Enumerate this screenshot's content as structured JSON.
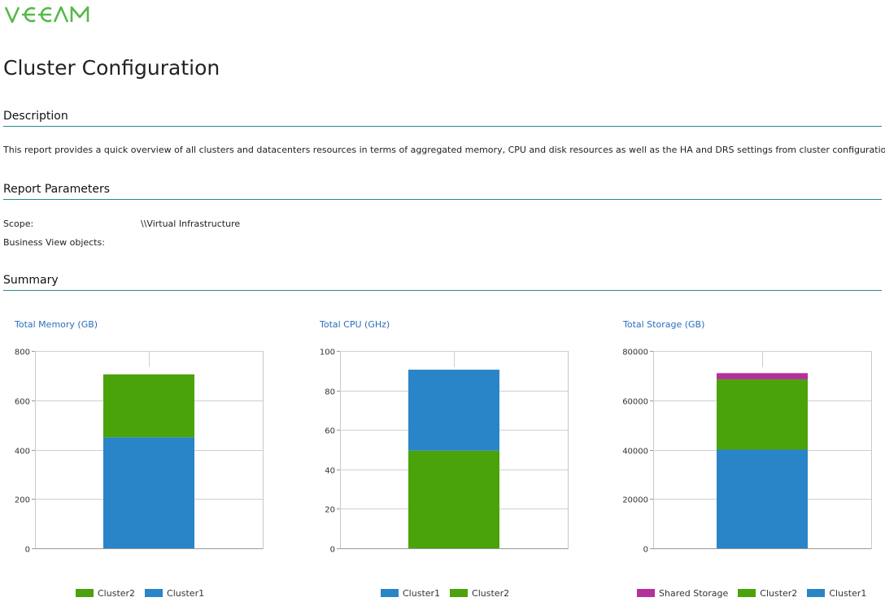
{
  "header": {
    "logo_text": "veeam",
    "logo_color": "#54b948"
  },
  "page_title": "Cluster Configuration",
  "sections": {
    "description": {
      "title": "Description",
      "text": "This report provides a quick overview of all clusters and datacenters resources in terms of aggregated memory, CPU and disk resources as well as the HA and DRS settings from cluster configuration."
    },
    "parameters": {
      "title": "Report Parameters",
      "items": [
        {
          "label": "Scope:",
          "value": "\\\\Virtual Infrastructure"
        },
        {
          "label": "Business View objects:",
          "value": ""
        }
      ]
    },
    "summary": {
      "title": "Summary"
    }
  },
  "colors": {
    "blue": "#2a84c8",
    "green": "#4aa30a",
    "magenta": "#b4309a",
    "rule": "#2b8a86"
  },
  "chart_data": [
    {
      "type": "bar",
      "stacked": true,
      "title": "Total Memory (GB)",
      "ylim": [
        0,
        800
      ],
      "yticks": [
        0,
        200,
        400,
        600,
        800
      ],
      "series": [
        {
          "name": "Cluster1",
          "value": 450,
          "color": "#2a84c8"
        },
        {
          "name": "Cluster2",
          "value": 255,
          "color": "#4aa30a"
        }
      ],
      "legend_order": [
        "Cluster2",
        "Cluster1"
      ]
    },
    {
      "type": "bar",
      "stacked": true,
      "title": "Total CPU (GHz)",
      "ylim": [
        0,
        100
      ],
      "yticks": [
        0,
        20,
        40,
        60,
        80,
        100
      ],
      "series": [
        {
          "name": "Cluster2",
          "value": 49.5,
          "color": "#4aa30a"
        },
        {
          "name": "Cluster1",
          "value": 41,
          "color": "#2a84c8"
        }
      ],
      "legend_order": [
        "Cluster1",
        "Cluster2"
      ]
    },
    {
      "type": "bar",
      "stacked": true,
      "title": "Total Storage (GB)",
      "ylim": [
        0,
        80000
      ],
      "yticks": [
        0,
        20000,
        40000,
        60000,
        80000
      ],
      "series": [
        {
          "name": "Cluster1",
          "value": 40000,
          "color": "#2a84c8"
        },
        {
          "name": "Cluster2",
          "value": 28500,
          "color": "#4aa30a"
        },
        {
          "name": "Shared Storage",
          "value": 2500,
          "color": "#b4309a"
        }
      ],
      "legend_order": [
        "Shared Storage",
        "Cluster2",
        "Cluster1"
      ]
    }
  ]
}
